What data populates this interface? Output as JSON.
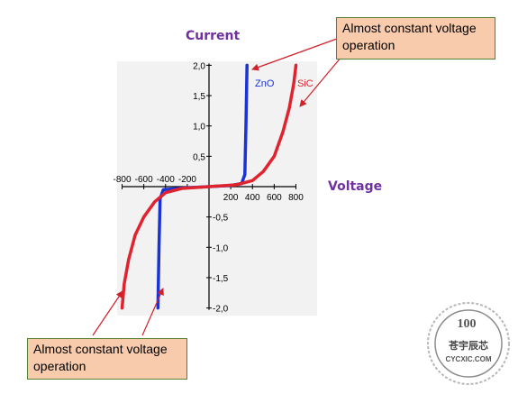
{
  "chart_data": {
    "type": "line",
    "xlabel": "Voltage",
    "ylabel": "Current",
    "xlim": [
      -800,
      800
    ],
    "ylim": [
      -2.0,
      2.0
    ],
    "x_ticks": [
      -800,
      -600,
      -400,
      -200,
      200,
      400,
      600,
      800
    ],
    "x_tick_labels_pos": [
      "200",
      "400",
      "600",
      "800"
    ],
    "x_tick_labels_neg": [
      "-800",
      "-600",
      "-400",
      "-200"
    ],
    "y_ticks": [
      2.0,
      1.5,
      1.0,
      0.5,
      -0.5,
      -1.0,
      -1.5,
      -2.0
    ],
    "y_tick_labels": [
      "2,0",
      "1,5",
      "1,0",
      "0,5",
      "-0,5",
      "-1,0",
      "-1,5",
      "-2,0"
    ],
    "series": [
      {
        "name": "ZnO",
        "color": "#1a33d6",
        "points": [
          [
            -470,
            -2.0
          ],
          [
            -460,
            -1.0
          ],
          [
            -450,
            -0.2
          ],
          [
            -420,
            -0.05
          ],
          [
            -200,
            -0.02
          ],
          [
            0,
            0
          ],
          [
            200,
            0.02
          ],
          [
            300,
            0.05
          ],
          [
            330,
            0.2
          ],
          [
            340,
            1.0
          ],
          [
            350,
            2.0
          ]
        ]
      },
      {
        "name": "SiC",
        "color": "#e0242f",
        "points": [
          [
            -800,
            -2.0
          ],
          [
            -780,
            -1.6
          ],
          [
            -740,
            -1.2
          ],
          [
            -680,
            -0.8
          ],
          [
            -600,
            -0.5
          ],
          [
            -500,
            -0.25
          ],
          [
            -400,
            -0.1
          ],
          [
            -250,
            -0.03
          ],
          [
            0,
            0
          ],
          [
            250,
            0.03
          ],
          [
            400,
            0.1
          ],
          [
            500,
            0.25
          ],
          [
            600,
            0.5
          ],
          [
            680,
            0.9
          ],
          [
            740,
            1.3
          ],
          [
            780,
            1.7
          ],
          [
            800,
            2.0
          ]
        ]
      }
    ]
  },
  "annotations": {
    "top": "Almost constant voltage operation",
    "bottom": "Almost constant voltage operation"
  },
  "watermark": {
    "percent": "100",
    "chinese": "苍宇辰芯",
    "domain": "CYCXIC.COM"
  },
  "colors": {
    "axis_title": "#7030a0",
    "callout_bg": "#f8cbad",
    "callout_border": "#548235",
    "arrow": "#d0202a"
  }
}
